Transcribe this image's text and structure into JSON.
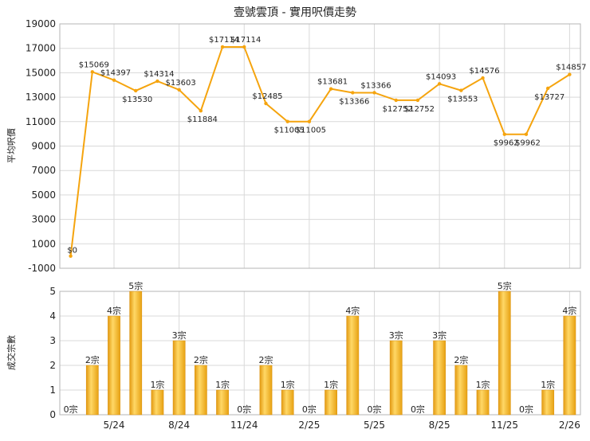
{
  "chart_data": [
    {
      "type": "line",
      "title": "壹號雲頂 - 實用呎價走勢",
      "ylabel": "平均呎價",
      "ylim": [
        -1000,
        19000
      ],
      "yticks": [
        -1000,
        1000,
        3000,
        5000,
        7000,
        9000,
        11000,
        13000,
        15000,
        17000,
        19000
      ],
      "grid": true,
      "color": "#F5A40E",
      "values": [
        0,
        15069,
        14397,
        13530,
        14314,
        13603,
        11884,
        17114,
        17114,
        12485,
        11005,
        11005,
        13681,
        13366,
        13366,
        12752,
        12752,
        14093,
        13553,
        14576,
        9962,
        9962,
        13727,
        14857
      ],
      "labels": [
        "$0",
        "$15069",
        "$14397",
        "$13530",
        "$14314",
        "$13603",
        "$11884",
        "$17114",
        "$17114",
        "$12485",
        "$11005",
        "$11005",
        "$13681",
        "$13366",
        "$13366",
        "$12752",
        "$12752",
        "$14093",
        "$13553",
        "$14576",
        "$9962",
        "$9962",
        "$13727",
        "$14857"
      ]
    },
    {
      "type": "bar",
      "ylabel": "成交宗數",
      "ylim": [
        0,
        5
      ],
      "yticks": [
        0,
        1,
        2,
        3,
        4,
        5
      ],
      "grid": true,
      "color": "#F5A40E",
      "values": [
        0,
        2,
        4,
        5,
        1,
        3,
        2,
        1,
        0,
        2,
        1,
        0,
        1,
        4,
        0,
        3,
        0,
        3,
        2,
        1,
        5,
        0,
        1,
        4
      ],
      "labels": [
        "0宗",
        "2宗",
        "4宗",
        "5宗",
        "1宗",
        "3宗",
        "2宗",
        "1宗",
        "0宗",
        "2宗",
        "1宗",
        "0宗",
        "1宗",
        "4宗",
        "0宗",
        "3宗",
        "0宗",
        "3宗",
        "2宗",
        "1宗",
        "5宗",
        "0宗",
        "1宗",
        "4宗"
      ],
      "xticks": [
        {
          "index": 2,
          "label": "5/24"
        },
        {
          "index": 5,
          "label": "8/24"
        },
        {
          "index": 8,
          "label": "11/24"
        },
        {
          "index": 11,
          "label": "2/25"
        },
        {
          "index": 14,
          "label": "5/25"
        },
        {
          "index": 17,
          "label": "8/25"
        },
        {
          "index": 20,
          "label": "11/25"
        },
        {
          "index": 23,
          "label": "2/26"
        }
      ]
    }
  ]
}
